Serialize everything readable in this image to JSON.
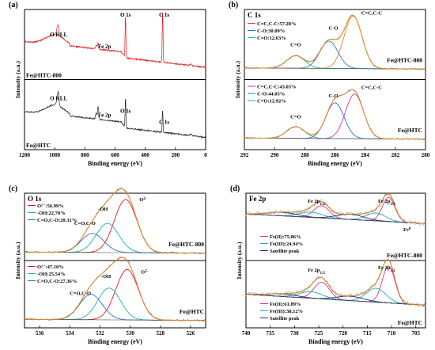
{
  "colors": {
    "red": "#e31a1c",
    "dark": "#2a2a2a",
    "orange": "#d98a1a",
    "blue": "#2f6fd6",
    "cyan": "#17b3a8",
    "magenta": "#e0338a",
    "gray": "#9a9a9a",
    "navy": "#1f2f80"
  },
  "chart_data": [
    {
      "type": "line",
      "panel_label": "(a)",
      "xlabel": "Binding energy (eV)",
      "ylabel": "Intensity (a.u.)",
      "xlim": [
        1200,
        0
      ],
      "xticks": [
        1200,
        1000,
        800,
        600,
        400,
        200,
        0
      ],
      "subplots": [
        {
          "sample": "Fe@HTC-800",
          "color": "red",
          "annotations": [
            {
              "text": "O KLL",
              "x": 980
            },
            {
              "text": "Fe 2p",
              "x": 712
            },
            {
              "text": "O 1s",
              "x": 531
            },
            {
              "text": "C 1s",
              "x": 285
            }
          ]
        },
        {
          "sample": "Fe@HTC",
          "color": "dark",
          "annotations": [
            {
              "text": "O KLL",
              "x": 980
            },
            {
              "text": "Fe 2p",
              "x": 712
            },
            {
              "text": "O 1s",
              "x": 531
            },
            {
              "text": "C 1s",
              "x": 285
            }
          ]
        }
      ]
    },
    {
      "type": "line",
      "panel_label": "(b)",
      "title": "C 1s",
      "xlabel": "Binding energy (eV)",
      "ylabel": "Intensity (a.u.)",
      "xlim": [
        292,
        280
      ],
      "xticks": [
        292,
        290,
        288,
        286,
        284,
        282,
        280
      ],
      "subplots": [
        {
          "sample": "Fe@HTC-800",
          "legend": [
            {
              "label": "C=C,C-C:57.28%",
              "color": "magenta"
            },
            {
              "label": "C-O:30.09%",
              "color": "blue"
            },
            {
              "label": "C=O:12.63%",
              "color": "cyan"
            }
          ],
          "peaks": [
            {
              "name": "C=C,C-C",
              "center": 284.8,
              "color": "orange",
              "height": 1.0
            },
            {
              "name": "C-O",
              "center": 286.4,
              "color": "blue",
              "height": 0.52
            },
            {
              "name": "C=O",
              "center": 288.6,
              "color": "cyan",
              "height": 0.24
            }
          ]
        },
        {
          "sample": "Fe@HTC",
          "legend": [
            {
              "label": "C=C,C-C:43.03%",
              "color": "magenta"
            },
            {
              "label": "C-O:44.05%",
              "color": "blue"
            },
            {
              "label": "C=O:12.92%",
              "color": "cyan"
            }
          ],
          "peaks": [
            {
              "name": "C=C,C-C",
              "center": 284.7,
              "color": "magenta",
              "height": 0.85
            },
            {
              "name": "C-O",
              "center": 286.0,
              "color": "blue",
              "height": 0.68
            },
            {
              "name": "C=O",
              "center": 288.6,
              "color": "cyan",
              "height": 0.22
            }
          ]
        }
      ]
    },
    {
      "type": "line",
      "panel_label": "(c)",
      "title": "O 1s",
      "xlabel": "Binding energy (eV)",
      "ylabel": "Intensity (a.u.)",
      "xlim": [
        537,
        525
      ],
      "xticks": [
        536,
        534,
        532,
        530,
        528,
        526
      ],
      "subplots": [
        {
          "sample": "Fe@HTC-800",
          "legend": [
            {
              "label": "O²⁻:56.99%",
              "color": "red"
            },
            {
              "label": "-OH:22.70%",
              "color": "cyan"
            },
            {
              "label": "C=O,C-O:20.31%",
              "color": "blue"
            }
          ],
          "peak_labels": [
            "O²⁻",
            "-OH",
            "C=O,C-O"
          ],
          "peaks": [
            {
              "name": "O2-",
              "center": 530.3,
              "color": "red",
              "height": 1.0
            },
            {
              "name": "-OH",
              "center": 531.5,
              "color": "cyan",
              "height": 0.55
            },
            {
              "name": "C=O,C-O",
              "center": 532.5,
              "color": "blue",
              "height": 0.36
            }
          ]
        },
        {
          "sample": "Fe@HTC",
          "legend": [
            {
              "label": "O²⁻:47.10%",
              "color": "red"
            },
            {
              "label": "-OH:25.54%",
              "color": "cyan"
            },
            {
              "label": "C=O,C-O:27.36%",
              "color": "blue"
            }
          ],
          "peak_labels": [
            "O²⁻",
            "-OH",
            "C=O,C-O"
          ],
          "peaks": [
            {
              "name": "O2-",
              "center": 530.2,
              "color": "red",
              "height": 0.95
            },
            {
              "name": "-OH",
              "center": 531.4,
              "color": "cyan",
              "height": 0.6
            },
            {
              "name": "C=O,C-O",
              "center": 532.6,
              "color": "blue",
              "height": 0.48
            }
          ]
        }
      ]
    },
    {
      "type": "line",
      "panel_label": "(d)",
      "title": "Fe 2p",
      "xlabel": "Binding energy (eV)",
      "ylabel": "Intensity (a.u.)",
      "xlim": [
        740,
        703
      ],
      "xticks": [
        740,
        735,
        730,
        725,
        720,
        715,
        710,
        705
      ],
      "subplots": [
        {
          "sample": "Fe@HTC-800",
          "legend": [
            {
              "label": "Fe(II):75.06%",
              "color": "magenta"
            },
            {
              "label": "Fe(III):24.94%",
              "color": "cyan"
            },
            {
              "label": "Satellite peak",
              "color": "navy"
            }
          ],
          "annotations": [
            {
              "text": "Fe 2p1/2",
              "x": 725
            },
            {
              "text": "Fe 2p3/2",
              "x": 711
            },
            {
              "text": "Fe0",
              "x": 707
            }
          ]
        },
        {
          "sample": "Fe@HTC",
          "legend": [
            {
              "label": "Fe(II):61.89%",
              "color": "magenta"
            },
            {
              "label": "Fe(III):38.12%",
              "color": "cyan"
            },
            {
              "label": "Satellite peak",
              "color": "navy"
            }
          ],
          "annotations": [
            {
              "text": "Fe 2p1/2",
              "x": 725
            },
            {
              "text": "Fe 2p3/2",
              "x": 711
            }
          ]
        }
      ]
    }
  ]
}
